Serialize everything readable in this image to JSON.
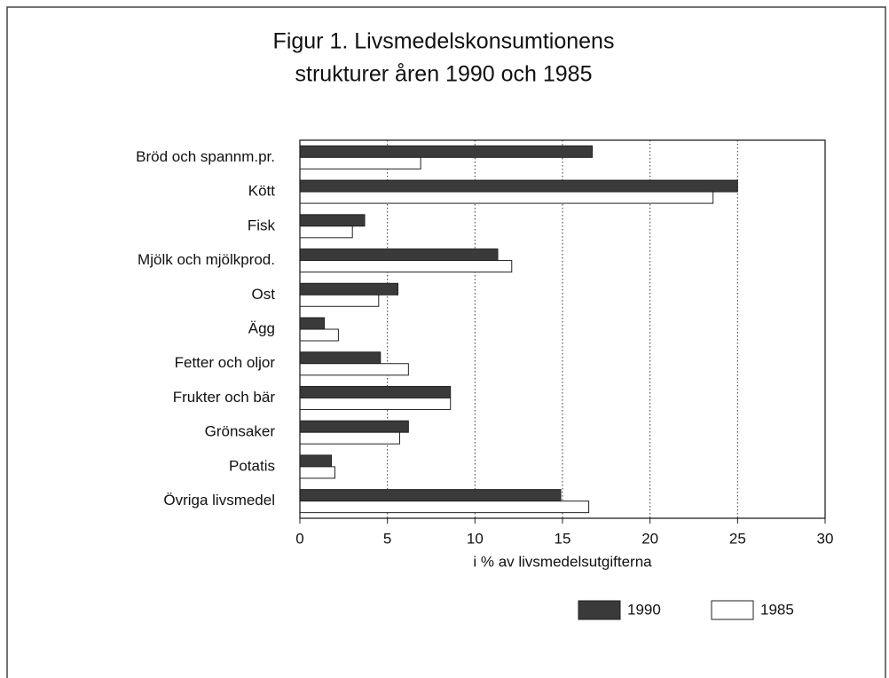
{
  "chart_data": {
    "type": "hbar",
    "title": [
      "Figur 1. Livsmedelskonsumtionens",
      "strukturer åren 1990 och 1985"
    ],
    "categories": [
      "Bröd och spannm.pr.",
      "Kött",
      "Fisk",
      "Mjölk och mjölkprod.",
      "Ost",
      "Ägg",
      "Fetter och oljor",
      "Frukter och bär",
      "Grönsaker",
      "Potatis",
      "Övriga livsmedel"
    ],
    "series": [
      {
        "name": "1990",
        "color": "#3a3a3a",
        "values": [
          16.7,
          25.0,
          3.7,
          11.3,
          5.6,
          1.4,
          4.6,
          8.6,
          6.2,
          1.8,
          14.9
        ]
      },
      {
        "name": "1985",
        "color": "#ffffff",
        "values": [
          6.9,
          23.6,
          3.0,
          12.1,
          4.5,
          2.2,
          6.2,
          8.6,
          5.7,
          2.0,
          16.5
        ]
      }
    ],
    "x_label": "i % av livsmedelsutgifterna",
    "xlim": [
      0,
      30
    ],
    "xticks": [
      0,
      5,
      10,
      15,
      20,
      25,
      30
    ],
    "grid": true,
    "legend": "bottom-right"
  }
}
